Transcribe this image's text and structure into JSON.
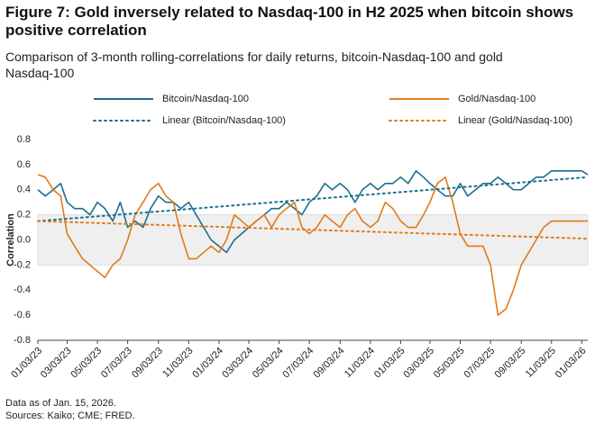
{
  "chart_data": {
    "type": "line",
    "title": "Figure 7: Gold inversely related to Nasdaq-100 in H2 2025 when bitcoin shows positive correlation",
    "subtitle": "Comparison of 3-month rolling-correlations for daily returns, bitcoin-Nasdaq-100 and gold Nasdaq-100",
    "y_label": "Correlation",
    "notes": [
      "Data as of Jan. 15, 2026.",
      "Sources: Kaiko; CME; FRED."
    ],
    "x": [
      "01/03/23",
      "01/18/23",
      "02/03/23",
      "02/18/23",
      "03/03/23",
      "03/18/23",
      "04/03/23",
      "04/18/23",
      "05/03/23",
      "05/18/23",
      "06/03/23",
      "06/18/23",
      "07/03/23",
      "07/18/23",
      "08/03/23",
      "08/18/23",
      "09/03/23",
      "09/18/23",
      "10/03/23",
      "10/18/23",
      "11/03/23",
      "11/18/23",
      "12/03/23",
      "12/18/23",
      "01/03/24",
      "01/18/24",
      "02/03/24",
      "02/18/24",
      "03/03/24",
      "03/18/24",
      "04/03/24",
      "04/18/24",
      "05/03/24",
      "05/18/24",
      "06/03/24",
      "06/18/24",
      "07/03/24",
      "07/18/24",
      "08/03/24",
      "08/18/24",
      "09/03/24",
      "09/18/24",
      "10/03/24",
      "10/18/24",
      "11/03/24",
      "11/18/24",
      "12/03/24",
      "12/18/24",
      "01/03/25",
      "01/18/25",
      "02/03/25",
      "02/18/25",
      "03/03/25",
      "03/18/25",
      "04/03/25",
      "04/18/25",
      "05/03/25",
      "05/18/25",
      "06/03/25",
      "06/18/25",
      "07/03/25",
      "07/18/25",
      "08/03/25",
      "08/18/25",
      "09/03/25",
      "09/18/25",
      "10/03/25",
      "10/18/25",
      "11/03/25",
      "11/18/25",
      "12/03/25",
      "12/18/25",
      "01/03/26",
      "01/15/26"
    ],
    "series": [
      {
        "name": "Bitcoin/Nasdaq-100",
        "color": "#1b6f8f",
        "values": [
          0.4,
          0.35,
          0.4,
          0.45,
          0.3,
          0.25,
          0.25,
          0.2,
          0.3,
          0.25,
          0.15,
          0.3,
          0.1,
          0.15,
          0.1,
          0.25,
          0.35,
          0.3,
          0.3,
          0.25,
          0.3,
          0.2,
          0.1,
          0,
          -0.05,
          -0.1,
          0,
          0.05,
          0.1,
          0.15,
          0.2,
          0.25,
          0.25,
          0.3,
          0.25,
          0.2,
          0.3,
          0.35,
          0.45,
          0.4,
          0.45,
          0.4,
          0.3,
          0.4,
          0.45,
          0.4,
          0.45,
          0.45,
          0.5,
          0.45,
          0.55,
          0.5,
          0.45,
          0.4,
          0.35,
          0.35,
          0.45,
          0.35,
          0.4,
          0.45,
          0.45,
          0.5,
          0.45,
          0.4,
          0.4,
          0.45,
          0.5,
          0.5,
          0.55,
          0.55,
          0.55,
          0.55,
          0.55,
          0.52
        ]
      },
      {
        "name": "Gold/Nasdaq-100",
        "color": "#e07b1a",
        "values": [
          0.52,
          0.5,
          0.4,
          0.35,
          0.05,
          -0.05,
          -0.15,
          -0.2,
          -0.25,
          -0.3,
          -0.2,
          -0.15,
          0,
          0.2,
          0.3,
          0.4,
          0.45,
          0.35,
          0.3,
          0.05,
          -0.15,
          -0.15,
          -0.1,
          -0.05,
          -0.1,
          0,
          0.2,
          0.15,
          0.1,
          0.15,
          0.2,
          0.1,
          0.2,
          0.25,
          0.3,
          0.1,
          0.05,
          0.1,
          0.2,
          0.15,
          0.1,
          0.2,
          0.25,
          0.15,
          0.1,
          0.15,
          0.3,
          0.25,
          0.15,
          0.1,
          0.1,
          0.2,
          0.3,
          0.45,
          0.5,
          0.3,
          0.05,
          -0.05,
          -0.05,
          -0.05,
          -0.2,
          -0.6,
          -0.55,
          -0.4,
          -0.2,
          -0.1,
          0,
          0.1,
          0.15,
          0.15,
          0.15,
          0.15,
          0.15,
          0.15
        ]
      },
      {
        "name": "Linear (Bitcoin/Nasdaq-100)",
        "color": "#1b6f8f",
        "dashed": true,
        "x": [
          "01/03/23",
          "01/15/26"
        ],
        "values": [
          0.15,
          0.5
        ]
      },
      {
        "name": "Linear (Gold/Nasdaq-100)",
        "color": "#e07b1a",
        "dashed": true,
        "x": [
          "01/03/23",
          "01/15/26"
        ],
        "values": [
          0.15,
          0.01
        ]
      }
    ],
    "xlim": [
      "01/03/23",
      "01/15/26"
    ],
    "xticks": [
      "01/03/23",
      "03/03/23",
      "05/03/23",
      "07/03/23",
      "09/03/23",
      "11/03/23",
      "01/03/24",
      "03/03/24",
      "05/03/24",
      "07/03/24",
      "09/03/24",
      "11/03/24",
      "01/03/25",
      "03/03/25",
      "05/03/25",
      "07/03/25",
      "09/03/25",
      "11/03/25",
      "01/03/26"
    ],
    "ylim": [
      -0.8,
      0.8
    ],
    "yticks": [
      0.8,
      0.6,
      0.4,
      0.2,
      {
        "value": 0,
        "label": "0.0"
      },
      -0.2,
      -0.4,
      -0.6,
      -0.8
    ],
    "shaded_band": [
      -0.2,
      0.2
    ],
    "grid": false
  }
}
